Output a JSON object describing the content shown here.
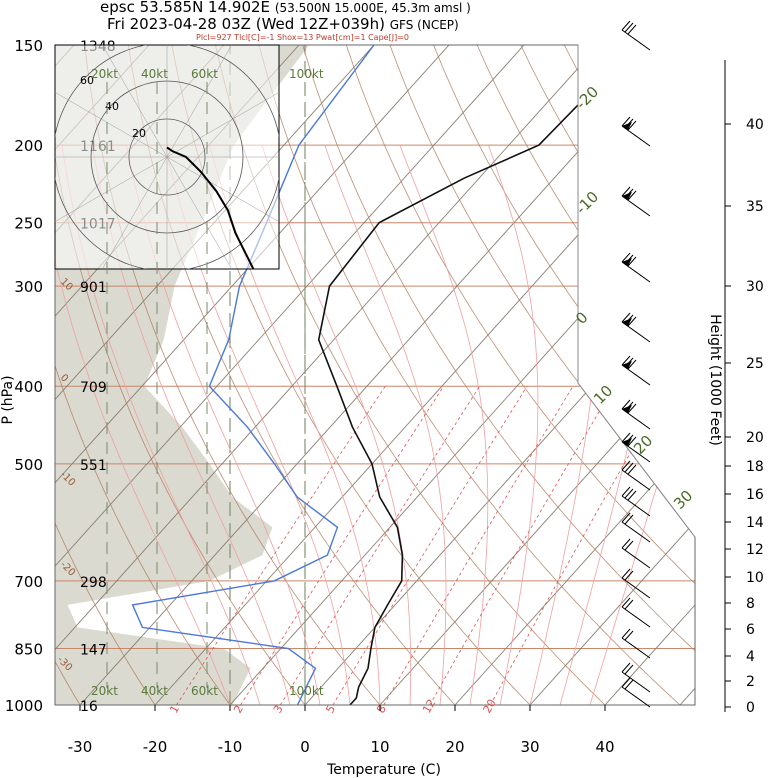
{
  "header": {
    "line1": "epsc 53.585N 14.902E",
    "line1_small": "(53.500N 15.000E,  45.3m amsl )",
    "line2": "Fri 2023-04-28 03Z (Wed 12Z+039h)",
    "line2_small": "GFS (NCEP)",
    "indices": "Plcl=927 Tlcl[C]=-1 Shox=13 Pwat[cm]=1 Cape[J]=0"
  },
  "colors": {
    "temperature": "#111111",
    "dewpoint": "#4a78d8",
    "dry_adiabat": "#b07a5a",
    "moist_adiabat": "#f0a0a0",
    "mixing_ratio": "#e05050",
    "isotherm": "#8a7e70",
    "isobar": "#c8866a",
    "shade": "#d6d6cc",
    "hodo_wind_label": "#5a7a3a"
  },
  "chart_data": [
    {
      "type": "line",
      "name": "skew-t",
      "xlabel": "Temperature (C)",
      "ylabel": "P (hPa)",
      "y2label": "Height (1000 Feet)",
      "x_ticks": [
        "-30",
        "-20",
        "-10",
        "0",
        "10",
        "20",
        "30",
        "40"
      ],
      "y_ticks": [
        {
          "p": 150,
          "label": "150",
          "height": "1348"
        },
        {
          "p": 200,
          "label": "200",
          "height": "1161"
        },
        {
          "p": 250,
          "label": "250",
          "height": "1017"
        },
        {
          "p": 300,
          "label": "300",
          "height": "901"
        },
        {
          "p": 400,
          "label": "400",
          "height": "709"
        },
        {
          "p": 500,
          "label": "500",
          "height": "551"
        },
        {
          "p": 700,
          "label": "700",
          "height": "298"
        },
        {
          "p": 850,
          "label": "850",
          "height": "147"
        },
        {
          "p": 1000,
          "label": "1000",
          "height": "16"
        }
      ],
      "height_ticks": [
        "40",
        "35",
        "30",
        "25",
        "20",
        "18",
        "16",
        "14",
        "12",
        "10",
        "8",
        "6",
        "4",
        "2",
        "0"
      ],
      "mixing_ratio_labels": [
        "1",
        "2",
        "3",
        "5",
        "8",
        "12",
        "20"
      ],
      "theta_labels": [
        "10",
        "0",
        "-10",
        "-20",
        "-30"
      ],
      "isotherm_labels": [
        "-20",
        "-10",
        "0",
        "10",
        "20",
        "30"
      ],
      "series": [
        {
          "role": "temperature",
          "points": [
            [
              150,
              -35
            ],
            [
              200,
              -36
            ],
            [
              220,
              -42
            ],
            [
              250,
              -48
            ],
            [
              300,
              -47
            ],
            [
              350,
              -42
            ],
            [
              400,
              -34
            ],
            [
              450,
              -27
            ],
            [
              500,
              -20
            ],
            [
              550,
              -15
            ],
            [
              600,
              -9
            ],
            [
              650,
              -5
            ],
            [
              700,
              -2
            ],
            [
              750,
              -1
            ],
            [
              800,
              0
            ],
            [
              850,
              2
            ],
            [
              900,
              4
            ],
            [
              950,
              5
            ],
            [
              980,
              6
            ],
            [
              1000,
              6
            ]
          ]
        },
        {
          "role": "dewpoint",
          "points": [
            [
              150,
              -70
            ],
            [
              200,
              -68
            ],
            [
              250,
              -63
            ],
            [
              300,
              -59
            ],
            [
              350,
              -54
            ],
            [
              400,
              -51
            ],
            [
              450,
              -41
            ],
            [
              500,
              -33
            ],
            [
              550,
              -26
            ],
            [
              600,
              -17
            ],
            [
              650,
              -15
            ],
            [
              700,
              -19
            ],
            [
              750,
              -35
            ],
            [
              800,
              -31
            ],
            [
              850,
              -9
            ],
            [
              900,
              -3
            ],
            [
              950,
              -2
            ],
            [
              1000,
              -1
            ]
          ]
        }
      ]
    },
    {
      "type": "scatter",
      "name": "hodograph",
      "rings_kt": [
        20,
        40,
        60
      ],
      "ring_labels": [
        "20",
        "40",
        "60"
      ],
      "speed_labels": [
        "20kt",
        "40kt",
        "60kt",
        "100kt"
      ],
      "trace_points_kt": [
        [
          0,
          5
        ],
        [
          3,
          3
        ],
        [
          10,
          0
        ],
        [
          18,
          -8
        ],
        [
          26,
          -18
        ],
        [
          32,
          -28
        ],
        [
          36,
          -40
        ],
        [
          40,
          -48
        ],
        [
          46,
          -60
        ],
        [
          52,
          -70
        ],
        [
          58,
          -78
        ]
      ]
    }
  ]
}
